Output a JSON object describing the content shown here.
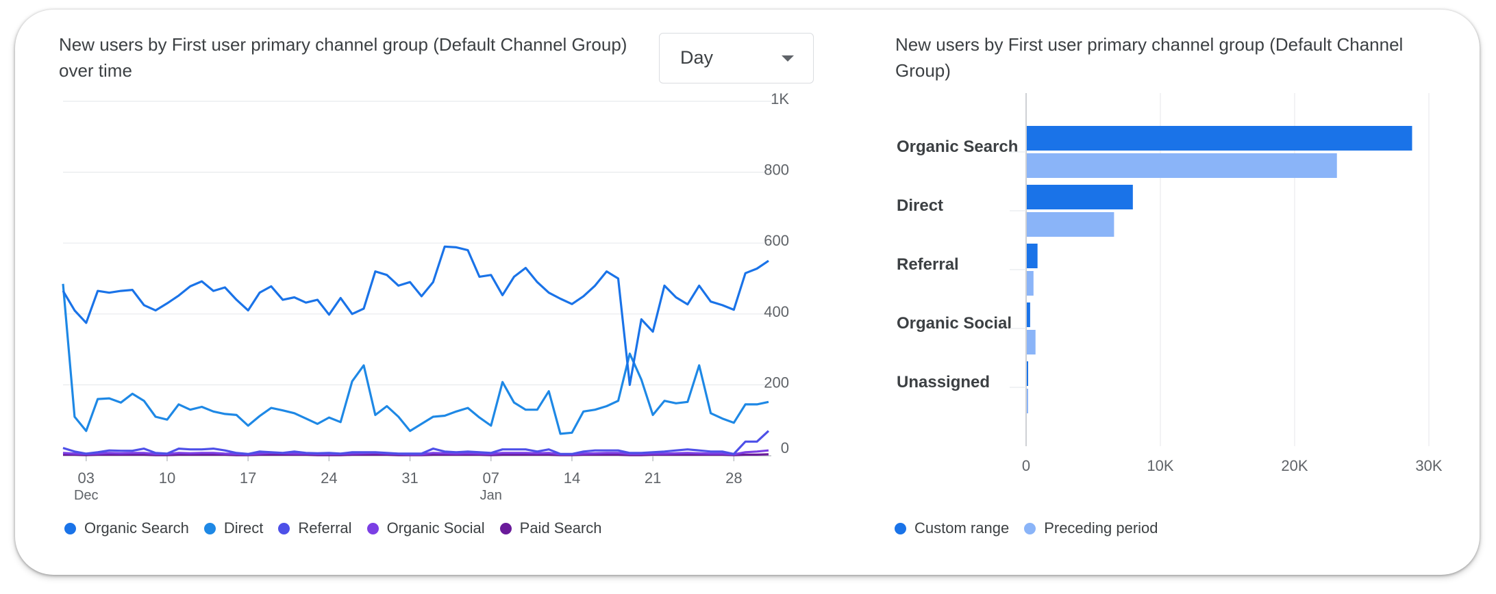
{
  "line_panel": {
    "title": "New users by First user primary channel group (Default Channel Group) over time",
    "granularity_select": {
      "value": "Day"
    }
  },
  "bar_panel": {
    "title": "New users by First user primary channel group (Default Channel Group)"
  },
  "chart_data": [
    {
      "type": "line",
      "x": [
        "2023-12-01",
        "2023-12-02",
        "2023-12-03",
        "2023-12-04",
        "2023-12-05",
        "2023-12-06",
        "2023-12-07",
        "2023-12-08",
        "2023-12-09",
        "2023-12-10",
        "2023-12-11",
        "2023-12-12",
        "2023-12-13",
        "2023-12-14",
        "2023-12-15",
        "2023-12-16",
        "2023-12-17",
        "2023-12-18",
        "2023-12-19",
        "2023-12-20",
        "2023-12-21",
        "2023-12-22",
        "2023-12-23",
        "2023-12-24",
        "2023-12-25",
        "2023-12-26",
        "2023-12-27",
        "2023-12-28",
        "2023-12-29",
        "2023-12-30",
        "2023-12-31",
        "2024-01-01",
        "2024-01-02",
        "2024-01-03",
        "2024-01-04",
        "2024-01-05",
        "2024-01-06",
        "2024-01-07",
        "2024-01-08",
        "2024-01-09",
        "2024-01-10",
        "2024-01-11",
        "2024-01-12",
        "2024-01-13",
        "2024-01-14",
        "2024-01-15",
        "2024-01-16",
        "2024-01-17",
        "2024-01-18",
        "2024-01-19",
        "2024-01-20",
        "2024-01-21",
        "2024-01-22",
        "2024-01-23",
        "2024-01-24",
        "2024-01-25",
        "2024-01-26",
        "2024-01-27",
        "2024-01-28",
        "2024-01-29",
        "2024-01-30",
        "2024-01-31"
      ],
      "x_ticks": [
        {
          "date": "2023-12-03",
          "label": "03",
          "sublabel": "Dec"
        },
        {
          "date": "2023-12-10",
          "label": "10",
          "sublabel": ""
        },
        {
          "date": "2023-12-17",
          "label": "17",
          "sublabel": ""
        },
        {
          "date": "2023-12-24",
          "label": "24",
          "sublabel": ""
        },
        {
          "date": "2023-12-31",
          "label": "31",
          "sublabel": ""
        },
        {
          "date": "2024-01-07",
          "label": "07",
          "sublabel": "Jan"
        },
        {
          "date": "2024-01-14",
          "label": "14",
          "sublabel": ""
        },
        {
          "date": "2024-01-21",
          "label": "21",
          "sublabel": ""
        },
        {
          "date": "2024-01-28",
          "label": "28",
          "sublabel": ""
        }
      ],
      "y_ticks": [
        {
          "value": 0,
          "label": "0"
        },
        {
          "value": 200,
          "label": "200"
        },
        {
          "value": 400,
          "label": "400"
        },
        {
          "value": 600,
          "label": "600"
        },
        {
          "value": 800,
          "label": "800"
        },
        {
          "value": 1000,
          "label": "1K"
        }
      ],
      "ylim": [
        0,
        1000
      ],
      "grid": true,
      "series": [
        {
          "name": "Organic Search",
          "color": "#1a73e8",
          "values": [
            465,
            410,
            375,
            465,
            460,
            465,
            468,
            425,
            410,
            430,
            452,
            478,
            492,
            465,
            475,
            440,
            410,
            460,
            478,
            440,
            447,
            432,
            440,
            398,
            445,
            400,
            415,
            520,
            510,
            480,
            490,
            450,
            490,
            590,
            588,
            580,
            505,
            510,
            453,
            505,
            530,
            490,
            460,
            443,
            428,
            450,
            480,
            520,
            500,
            200,
            385,
            350,
            480,
            447,
            427,
            480,
            435,
            425,
            412,
            515,
            528,
            550
          ]
        },
        {
          "name": "Direct",
          "color": "#1e88e5",
          "values": [
            485,
            110,
            70,
            160,
            162,
            150,
            175,
            155,
            110,
            102,
            145,
            130,
            138,
            125,
            118,
            115,
            85,
            112,
            135,
            128,
            120,
            105,
            90,
            108,
            95,
            210,
            255,
            115,
            140,
            110,
            70,
            90,
            110,
            113,
            125,
            135,
            108,
            85,
            208,
            150,
            130,
            130,
            182,
            62,
            65,
            125,
            130,
            140,
            155,
            288,
            215,
            115,
            155,
            148,
            152,
            255,
            120,
            105,
            93,
            145,
            145,
            152
          ]
        },
        {
          "name": "Referral",
          "color": "#4d50e8",
          "values": [
            22,
            12,
            6,
            10,
            15,
            14,
            14,
            20,
            8,
            6,
            20,
            18,
            18,
            20,
            15,
            8,
            5,
            12,
            10,
            8,
            12,
            8,
            7,
            8,
            6,
            10,
            10,
            10,
            8,
            6,
            6,
            6,
            20,
            12,
            10,
            12,
            10,
            8,
            18,
            18,
            18,
            12,
            18,
            5,
            5,
            12,
            15,
            15,
            15,
            8,
            8,
            10,
            12,
            15,
            18,
            15,
            12,
            12,
            5,
            40,
            40,
            70
          ]
        },
        {
          "name": "Organic Social",
          "color": "#7b3fe4",
          "values": [
            8,
            6,
            5,
            6,
            8,
            7,
            8,
            8,
            5,
            5,
            8,
            7,
            8,
            8,
            6,
            5,
            4,
            6,
            8,
            7,
            6,
            6,
            5,
            5,
            5,
            6,
            7,
            8,
            6,
            5,
            4,
            4,
            8,
            7,
            6,
            7,
            6,
            5,
            8,
            8,
            8,
            7,
            8,
            4,
            4,
            6,
            7,
            8,
            8,
            5,
            5,
            6,
            6,
            7,
            8,
            7,
            6,
            6,
            4,
            10,
            12,
            15
          ]
        },
        {
          "name": "Paid Search",
          "color": "#6a1b9a",
          "values": [
            3,
            3,
            2,
            3,
            3,
            3,
            3,
            3,
            2,
            2,
            3,
            3,
            3,
            3,
            3,
            2,
            2,
            3,
            3,
            3,
            3,
            3,
            2,
            2,
            2,
            3,
            3,
            3,
            3,
            2,
            2,
            2,
            3,
            3,
            3,
            3,
            3,
            2,
            3,
            3,
            3,
            3,
            3,
            2,
            2,
            3,
            3,
            3,
            3,
            2,
            2,
            3,
            3,
            3,
            3,
            3,
            3,
            3,
            2,
            3,
            3,
            4
          ]
        }
      ],
      "legend_position": "bottom-left"
    },
    {
      "type": "bar",
      "orientation": "horizontal",
      "categories": [
        "Organic Search",
        "Direct",
        "Referral",
        "Organic Social",
        "Unassigned"
      ],
      "series": [
        {
          "name": "Custom range",
          "color": "#1a73e8",
          "values": [
            28700,
            7900,
            800,
            250,
            60
          ]
        },
        {
          "name": "Preceding period",
          "color": "#8ab4f8",
          "values": [
            23100,
            6500,
            500,
            650,
            40
          ]
        }
      ],
      "x_ticks": [
        {
          "value": 0,
          "label": "0"
        },
        {
          "value": 10000,
          "label": "10K"
        },
        {
          "value": 20000,
          "label": "20K"
        },
        {
          "value": 30000,
          "label": "30K"
        }
      ],
      "xlim": [
        0,
        30000
      ],
      "grid": true,
      "legend_position": "bottom-left"
    }
  ]
}
